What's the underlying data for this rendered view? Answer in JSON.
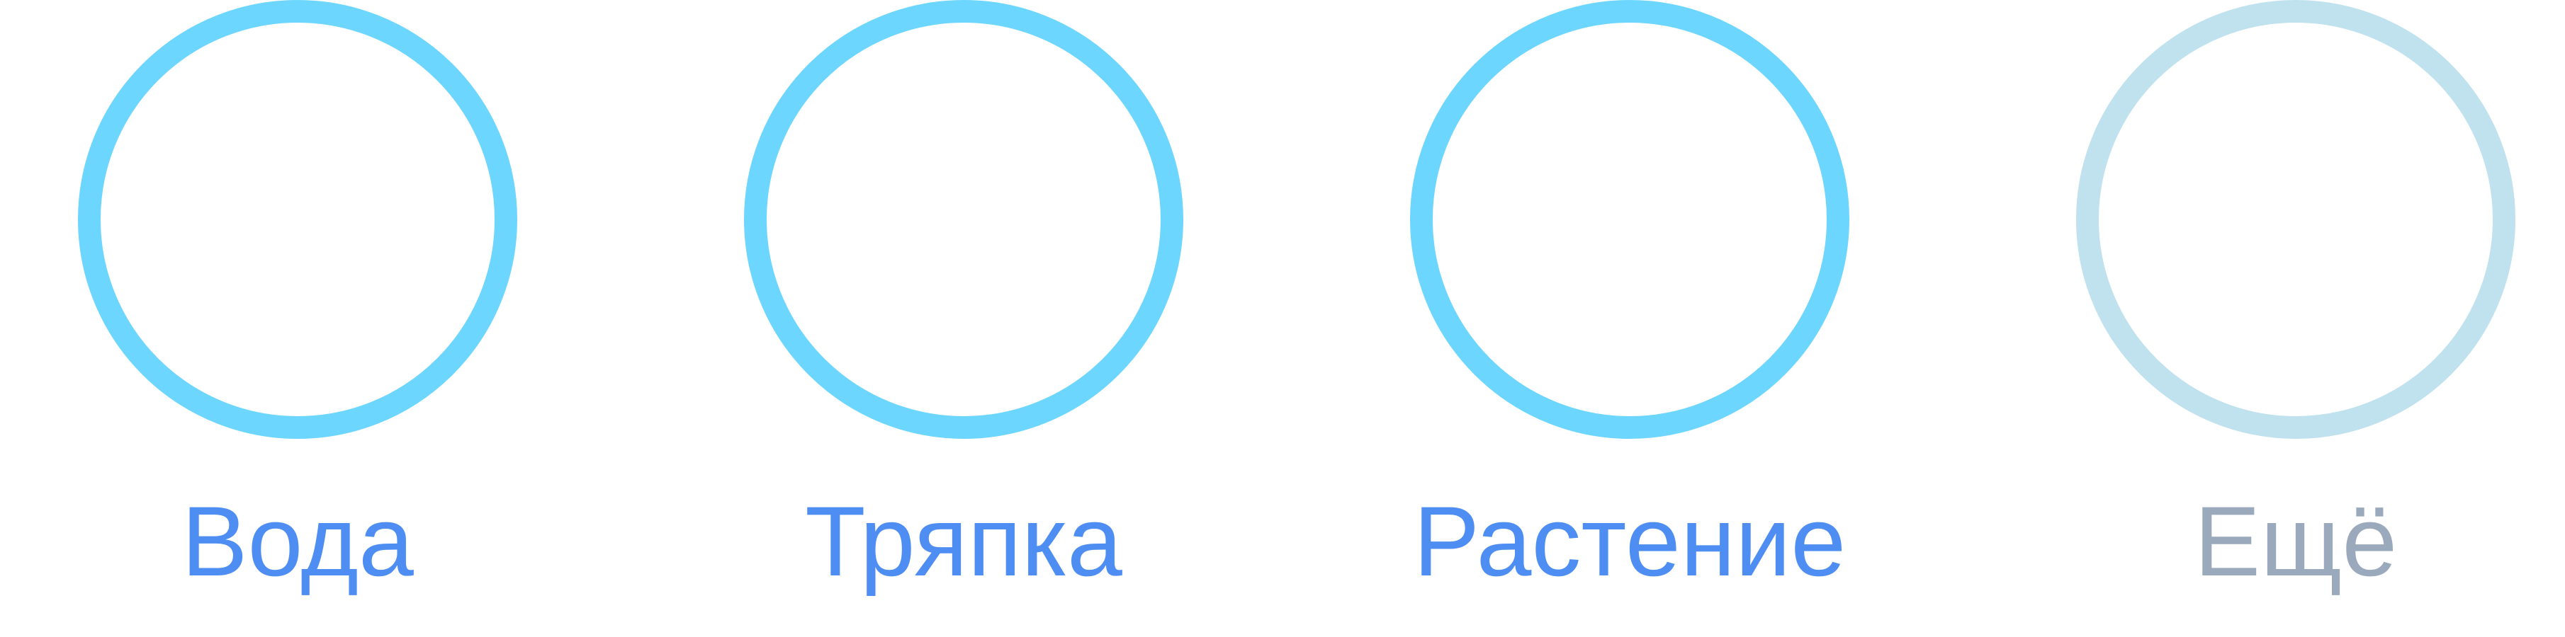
{
  "options": [
    {
      "label": "Вода",
      "ring_color": "#6DD6FF",
      "text_color": "#4E8EF2",
      "state": "enabled"
    },
    {
      "label": "Тряпка",
      "ring_color": "#6DD6FF",
      "text_color": "#4E8EF2",
      "state": "enabled"
    },
    {
      "label": "Растение",
      "ring_color": "#6DD6FF",
      "text_color": "#4E8EF2",
      "state": "enabled"
    },
    {
      "label": "Ещё",
      "ring_color": "#BFE2EE",
      "text_color": "#9AA9BC",
      "state": "muted"
    }
  ]
}
